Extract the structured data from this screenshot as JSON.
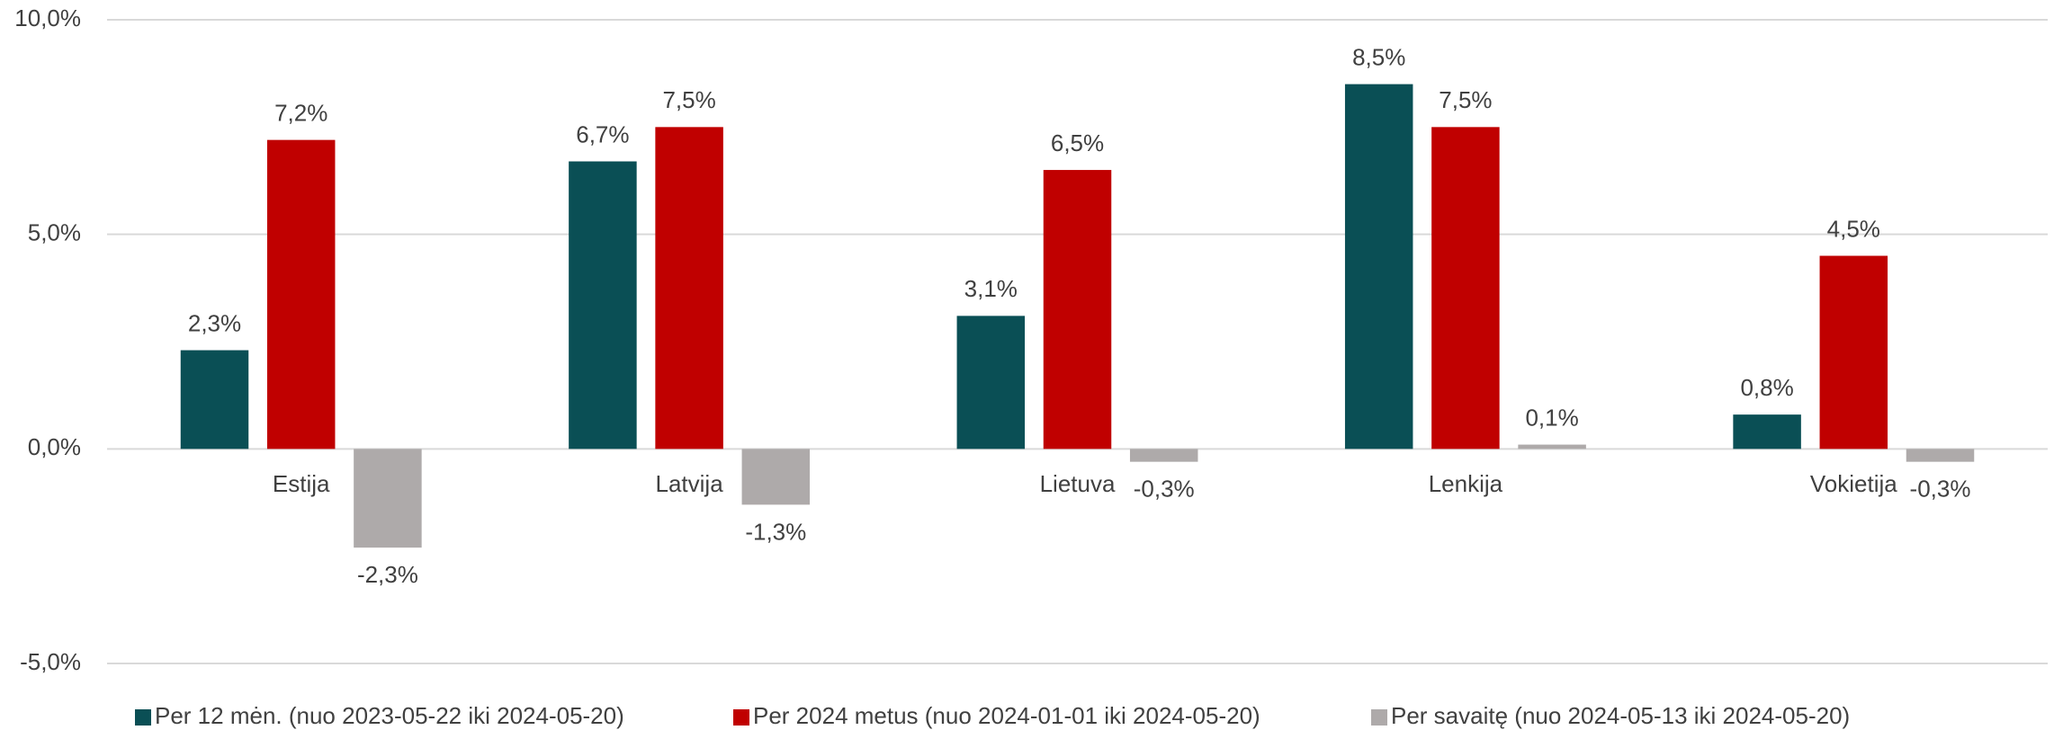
{
  "chart_data": {
    "type": "bar",
    "categories": [
      "Estija",
      "Latvija",
      "Lietuva",
      "Lenkija",
      "Vokietija"
    ],
    "series": [
      {
        "name": "Per 12 mėn. (nuo 2023-05-22 iki 2024-05-20)",
        "color": "#0a4f55",
        "values": [
          2.3,
          6.7,
          3.1,
          8.5,
          0.8
        ],
        "value_labels": [
          "2,3%",
          "6,7%",
          "3,1%",
          "8,5%",
          "0,8%"
        ]
      },
      {
        "name": "Per 2024 metus (nuo 2024-01-01 iki 2024-05-20)",
        "color": "#c00000",
        "values": [
          7.2,
          7.5,
          6.5,
          7.5,
          4.5
        ],
        "value_labels": [
          "7,2%",
          "7,5%",
          "6,5%",
          "7,5%",
          "4,5%"
        ]
      },
      {
        "name": "Per savaitę (nuo 2024-05-13 iki 2024-05-20)",
        "color": "#aeaaaa",
        "values": [
          -2.3,
          -1.3,
          -0.3,
          0.1,
          -0.3
        ],
        "value_labels": [
          "-2,3%",
          "-1,3%",
          "-0,3%",
          "0,1%",
          "-0,3%"
        ]
      }
    ],
    "ylim": [
      -5,
      10
    ],
    "yticks": [
      {
        "value": -5,
        "label": "-5,0%"
      },
      {
        "value": 0,
        "label": "0,0%"
      },
      {
        "value": 5,
        "label": "5,0%"
      },
      {
        "value": 10,
        "label": "10,0%"
      }
    ],
    "grid": true,
    "legend": "bottom"
  }
}
